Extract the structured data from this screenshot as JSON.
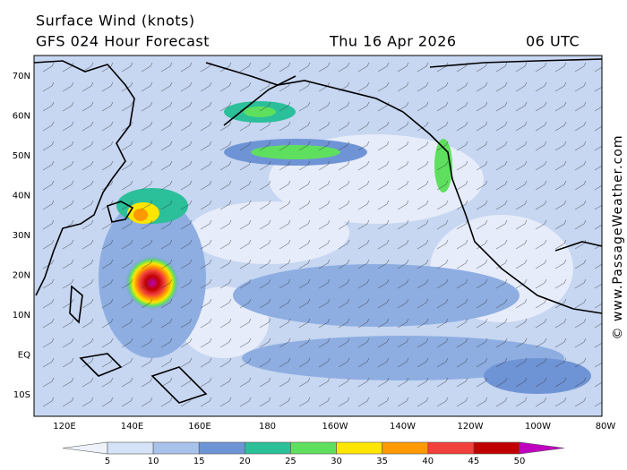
{
  "header": {
    "title": "Surface Wind (knots)",
    "model": "GFS 024 Hour Forecast",
    "date": "Thu 16 Apr 2026",
    "time": "06 UTC"
  },
  "map": {
    "lat_labels": [
      "70N",
      "60N",
      "50N",
      "40N",
      "30N",
      "20N",
      "10N",
      "EQ",
      "10S"
    ],
    "lon_labels": [
      "120E",
      "140E",
      "160E",
      "180",
      "160W",
      "140W",
      "120W",
      "100W",
      "80W"
    ]
  },
  "colorbar": {
    "labels": [
      "5",
      "10",
      "15",
      "20",
      "25",
      "30",
      "35",
      "40",
      "45",
      "50"
    ],
    "colors": [
      "#eef2fb",
      "#d6e2f7",
      "#a9c2ea",
      "#6f94d6",
      "#2bbf9a",
      "#5ee05e",
      "#ffe600",
      "#ff9900",
      "#f0403c",
      "#c00000",
      "#c000c0"
    ]
  },
  "credit": "© www.PassageWeather.com"
}
